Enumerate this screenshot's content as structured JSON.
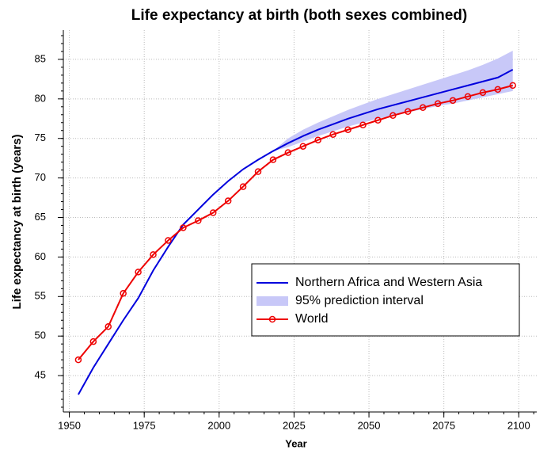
{
  "chart_data": {
    "type": "line",
    "title": "Life expectancy at birth (both sexes combined)",
    "xlabel": "Year",
    "ylabel": "Life expectancy at birth (years)",
    "xlim": [
      1948,
      2106
    ],
    "ylim": [
      40.4,
      88.7
    ],
    "xticks": [
      1950,
      1975,
      2000,
      2025,
      2050,
      2075,
      2100
    ],
    "yticks": [
      45,
      50,
      55,
      60,
      65,
      70,
      75,
      80,
      85
    ],
    "xminorticks": [
      1950,
      1955,
      1960,
      1965,
      1970,
      1975,
      1980,
      1985,
      1990,
      1995,
      2000,
      2005,
      2010,
      2015,
      2020,
      2025,
      2030,
      2035,
      2040,
      2045,
      2050,
      2055,
      2060,
      2065,
      2070,
      2075,
      2080,
      2085,
      2090,
      2095,
      2100,
      2105
    ],
    "yminorticks": [
      41,
      42,
      43,
      44,
      45,
      46,
      47,
      48,
      49,
      50,
      51,
      52,
      53,
      54,
      55,
      56,
      57,
      58,
      59,
      60,
      61,
      62,
      63,
      64,
      65,
      66,
      67,
      68,
      69,
      70,
      71,
      72,
      73,
      74,
      75,
      76,
      77,
      78,
      79,
      80,
      81,
      82,
      83,
      84,
      85,
      86,
      87,
      88
    ],
    "grid": true,
    "x": [
      1953,
      1958,
      1963,
      1968,
      1973,
      1978,
      1983,
      1988,
      1993,
      1998,
      2003,
      2008,
      2013,
      2018,
      2023,
      2028,
      2033,
      2038,
      2043,
      2048,
      2053,
      2058,
      2063,
      2068,
      2073,
      2078,
      2083,
      2088,
      2093,
      2098
    ],
    "series": [
      {
        "name": "Northern Africa and Western Asia",
        "color": "#0000dd",
        "marker": false,
        "values": [
          42.6,
          46.0,
          49.0,
          52.0,
          54.8,
          58.3,
          61.3,
          64.1,
          66.0,
          67.9,
          69.6,
          71.1,
          72.3,
          73.4,
          74.4,
          75.3,
          76.1,
          76.8,
          77.5,
          78.1,
          78.7,
          79.2,
          79.7,
          80.2,
          80.7,
          81.2,
          81.7,
          82.2,
          82.7,
          83.7
        ]
      },
      {
        "name": "World",
        "color": "#ee0000",
        "marker": true,
        "values": [
          47.0,
          49.3,
          51.2,
          55.4,
          58.1,
          60.3,
          62.1,
          63.7,
          64.6,
          65.6,
          67.1,
          68.9,
          70.8,
          72.3,
          73.2,
          74.0,
          74.8,
          75.5,
          76.1,
          76.7,
          77.3,
          77.9,
          78.4,
          78.9,
          79.4,
          79.8,
          80.3,
          80.8,
          81.2,
          81.7
        ]
      }
    ],
    "band": {
      "name": "95% prediction interval",
      "color": "#c8c8f8",
      "x": [
        2018,
        2023,
        2028,
        2033,
        2038,
        2043,
        2048,
        2053,
        2058,
        2063,
        2068,
        2073,
        2078,
        2083,
        2088,
        2093,
        2098
      ],
      "lower": [
        73.4,
        73.9,
        74.6,
        75.3,
        75.9,
        76.5,
        77.0,
        77.5,
        77.9,
        78.3,
        78.7,
        79.1,
        79.4,
        79.8,
        80.2,
        80.6,
        81.0
      ],
      "upper": [
        73.4,
        75.0,
        76.1,
        77.0,
        77.8,
        78.6,
        79.3,
        80.0,
        80.6,
        81.2,
        81.8,
        82.4,
        83.0,
        83.6,
        84.3,
        85.1,
        86.1
      ]
    }
  }
}
